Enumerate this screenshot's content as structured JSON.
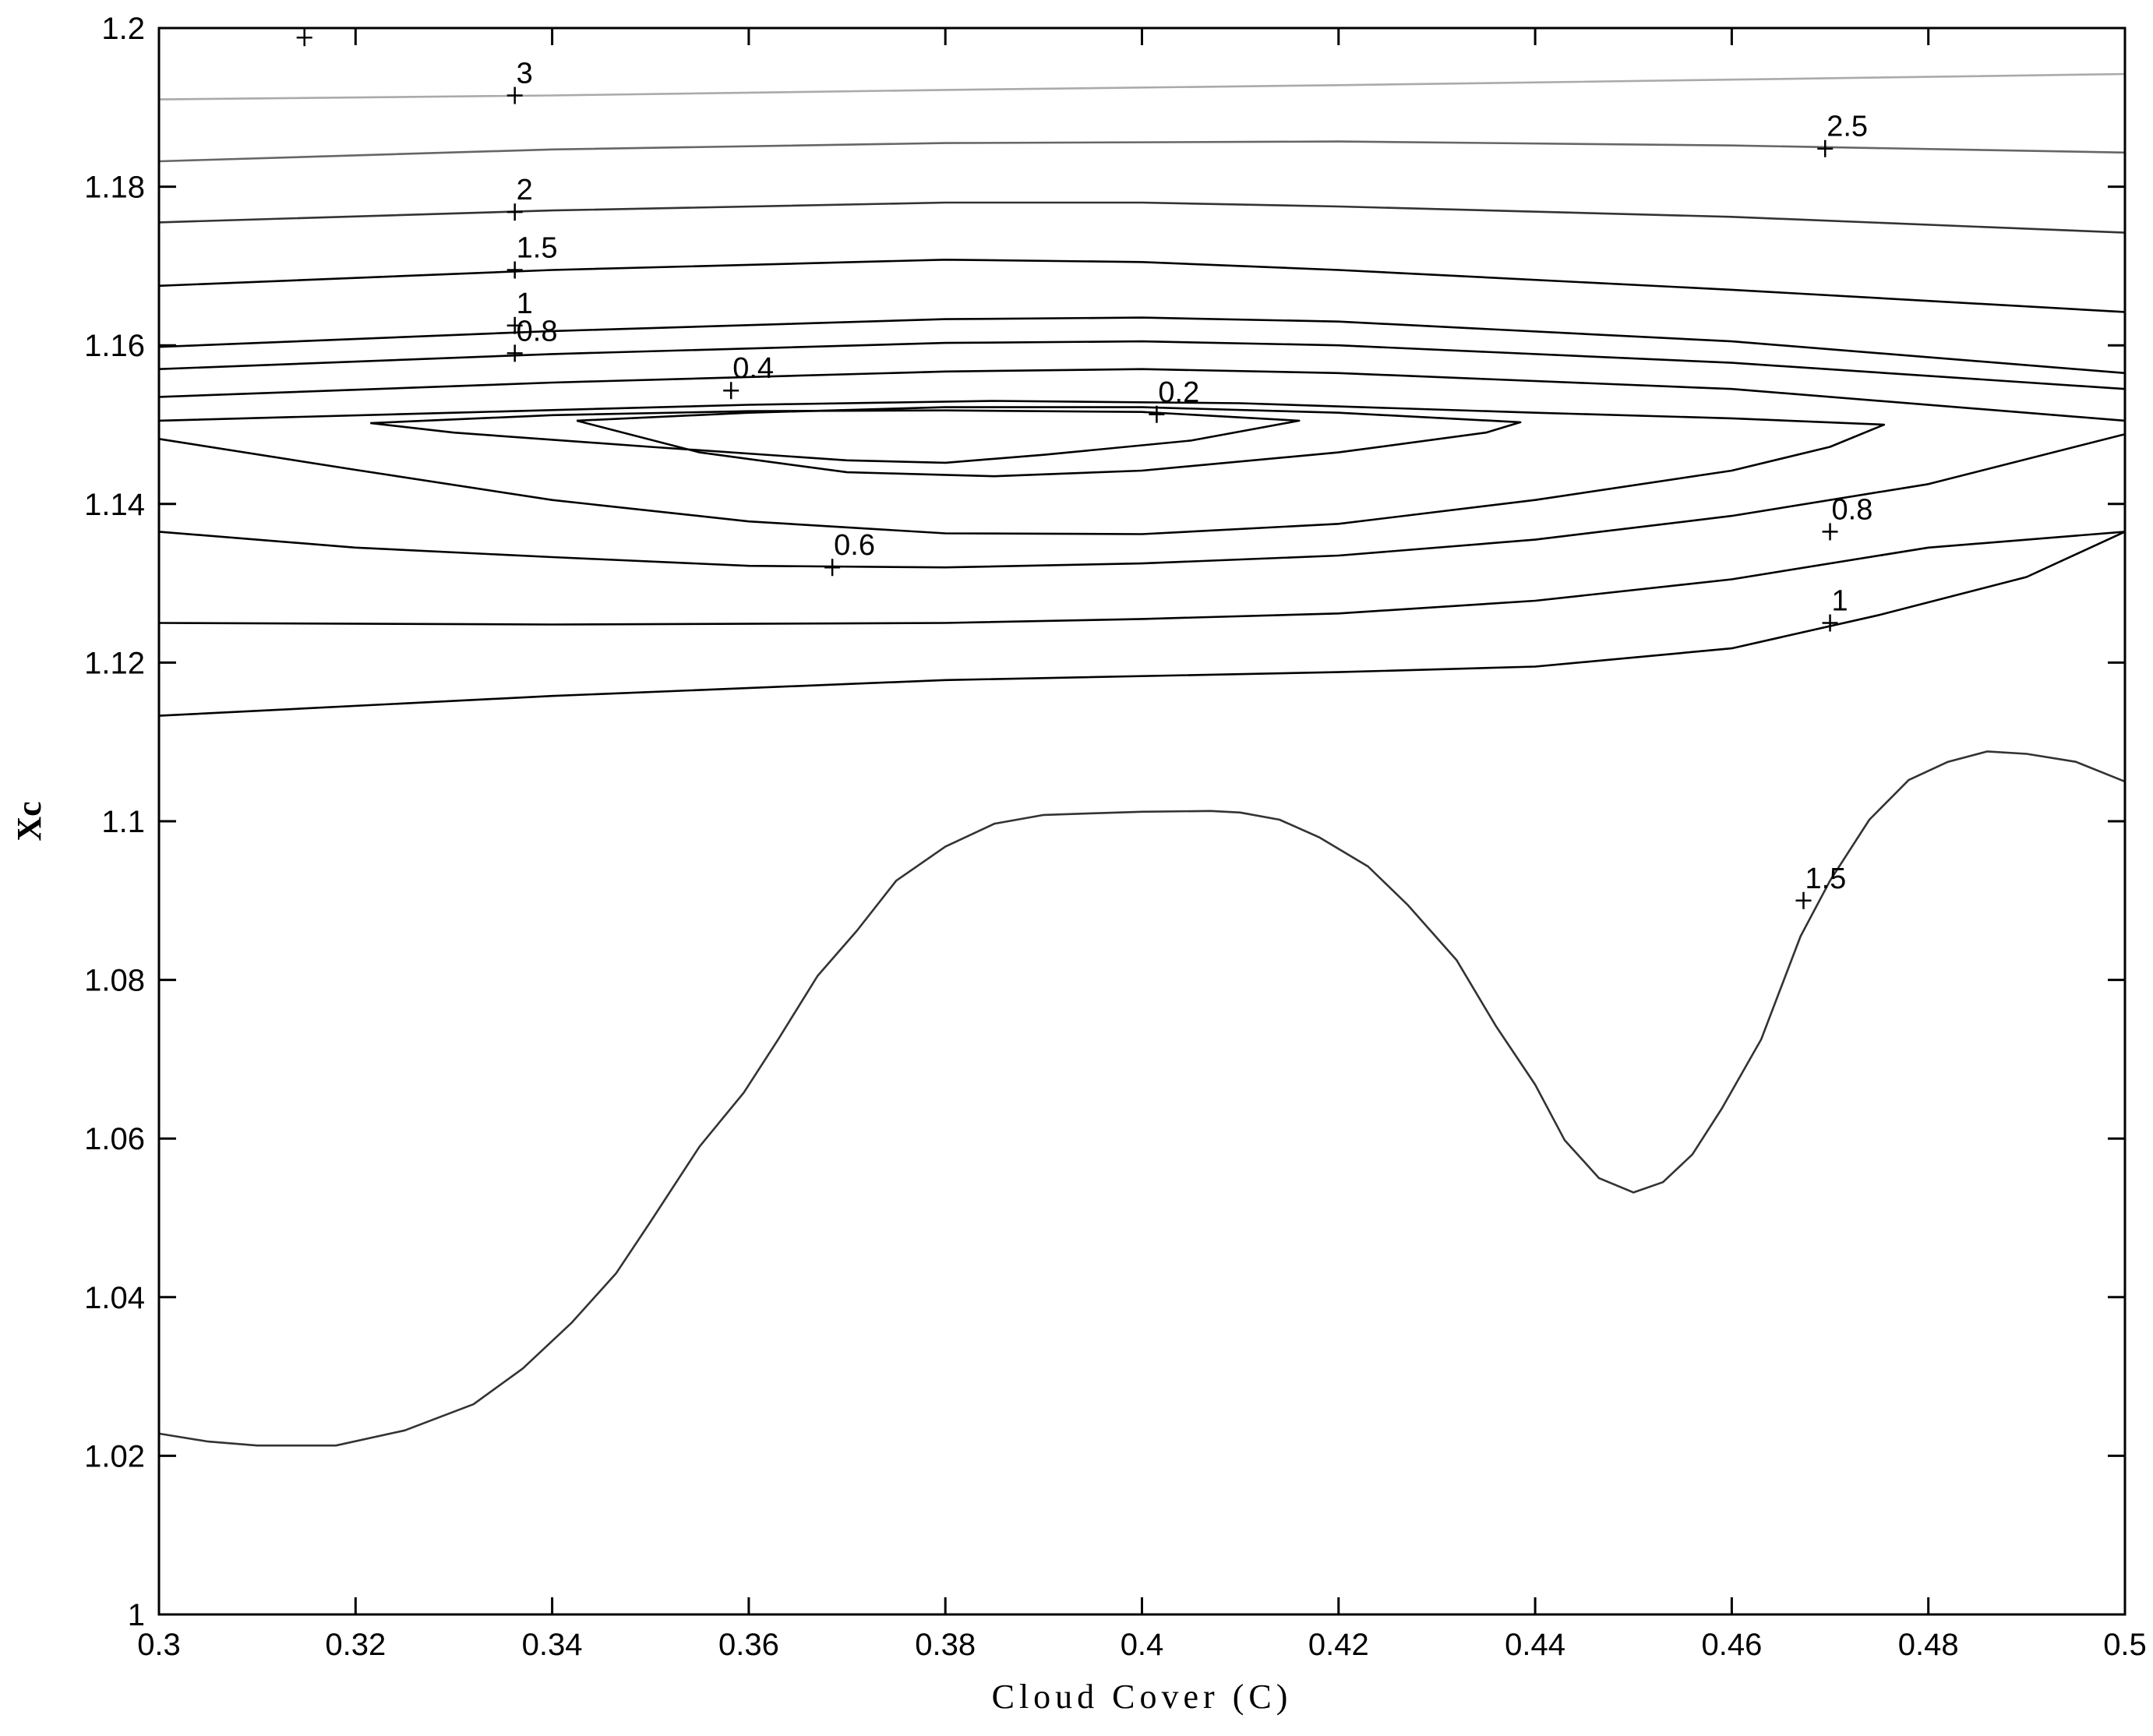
{
  "chart_data": {
    "type": "contour",
    "title": "",
    "xlabel": "Cloud Cover (C)",
    "ylabel": "Xc",
    "xlim": [
      0.3,
      0.5
    ],
    "ylim": [
      1.0,
      1.2
    ],
    "xticks": [
      "0.3",
      "0.32",
      "0.34",
      "0.36",
      "0.38",
      "0.4",
      "0.42",
      "0.44",
      "0.46",
      "0.48",
      "0.5"
    ],
    "yticks": [
      "1",
      "1.02",
      "1.04",
      "1.06",
      "1.08",
      "1.1",
      "1.12",
      "1.14",
      "1.16",
      "1.18",
      "1.2"
    ],
    "grid": false,
    "contours": [
      {
        "level": "3",
        "color": "#aaaaaa",
        "points": [
          [
            0.3,
            1.191
          ],
          [
            0.34,
            1.1915
          ],
          [
            0.38,
            1.1922
          ],
          [
            0.42,
            1.1928
          ],
          [
            0.46,
            1.1935
          ],
          [
            0.5,
            1.1942
          ]
        ]
      },
      {
        "level": "2.5",
        "color": "#666666",
        "points": [
          [
            0.3,
            1.1832
          ],
          [
            0.34,
            1.1847
          ],
          [
            0.38,
            1.1855
          ],
          [
            0.42,
            1.1857
          ],
          [
            0.46,
            1.1852
          ],
          [
            0.5,
            1.1843
          ]
        ]
      },
      {
        "level": "2",
        "color": "#333333",
        "points": [
          [
            0.3,
            1.1755
          ],
          [
            0.34,
            1.177
          ],
          [
            0.38,
            1.178
          ],
          [
            0.4,
            1.178
          ],
          [
            0.42,
            1.1775
          ],
          [
            0.46,
            1.1762
          ],
          [
            0.5,
            1.1742
          ]
        ]
      },
      {
        "level": "1.5",
        "color": "#000000",
        "points": [
          [
            0.3,
            1.1675
          ],
          [
            0.34,
            1.1695
          ],
          [
            0.38,
            1.1708
          ],
          [
            0.4,
            1.1705
          ],
          [
            0.42,
            1.1695
          ],
          [
            0.46,
            1.167
          ],
          [
            0.5,
            1.1642
          ]
        ]
      },
      {
        "level": "1",
        "color": "#000000",
        "points": [
          [
            0.3,
            1.1598
          ],
          [
            0.34,
            1.1618
          ],
          [
            0.38,
            1.1633
          ],
          [
            0.4,
            1.1635
          ],
          [
            0.42,
            1.163
          ],
          [
            0.46,
            1.1605
          ],
          [
            0.5,
            1.1565
          ]
        ]
      },
      {
        "level": "0.8",
        "color": "#000000",
        "points": [
          [
            0.3,
            1.157
          ],
          [
            0.34,
            1.1589
          ],
          [
            0.38,
            1.1603
          ],
          [
            0.4,
            1.1605
          ],
          [
            0.42,
            1.16
          ],
          [
            0.46,
            1.1578
          ],
          [
            0.5,
            1.1545
          ]
        ]
      },
      {
        "level": "0.6",
        "color": "#000000",
        "points": [
          [
            0.3,
            1.1535
          ],
          [
            0.34,
            1.1553
          ],
          [
            0.38,
            1.1567
          ],
          [
            0.4,
            1.157
          ],
          [
            0.42,
            1.1565
          ],
          [
            0.46,
            1.1545
          ],
          [
            0.5,
            1.1505
          ]
        ]
      },
      {
        "level": "0.4",
        "color": "#000000",
        "points": [
          [
            0.3,
            1.1505
          ],
          [
            0.33,
            1.1515
          ],
          [
            0.36,
            1.1525
          ],
          [
            0.385,
            1.153
          ],
          [
            0.41,
            1.1527
          ],
          [
            0.44,
            1.1515
          ],
          [
            0.46,
            1.1508
          ],
          [
            0.4755,
            1.15
          ],
          [
            0.47,
            1.1472
          ],
          [
            0.46,
            1.1442
          ],
          [
            0.44,
            1.1405
          ],
          [
            0.42,
            1.1375
          ],
          [
            0.4,
            1.1362
          ],
          [
            0.38,
            1.1363
          ],
          [
            0.36,
            1.1378
          ],
          [
            0.34,
            1.1405
          ],
          [
            0.32,
            1.1443
          ],
          [
            0.3,
            1.1482
          ]
        ]
      },
      {
        "level": "0.2",
        "color": "#000000",
        "points": [
          [
            0.3215,
            1.1502
          ],
          [
            0.34,
            1.1512
          ],
          [
            0.36,
            1.1517
          ],
          [
            0.38,
            1.1518
          ],
          [
            0.4,
            1.1516
          ],
          [
            0.416,
            1.1505
          ],
          [
            0.405,
            1.148
          ],
          [
            0.39,
            1.1462
          ],
          [
            0.38,
            1.1452
          ],
          [
            0.37,
            1.1455
          ],
          [
            0.35,
            1.1472
          ],
          [
            0.33,
            1.149
          ],
          [
            0.3215,
            1.1502
          ]
        ]
      },
      {
        "level": "0.4",
        "color": "#000000",
        "points": [
          [
            0.3425,
            1.1505
          ],
          [
            0.36,
            1.1515
          ],
          [
            0.38,
            1.1522
          ],
          [
            0.4,
            1.1522
          ],
          [
            0.42,
            1.1515
          ],
          [
            0.4385,
            1.1503
          ],
          [
            0.435,
            1.149
          ],
          [
            0.42,
            1.1465
          ],
          [
            0.4,
            1.1442
          ],
          [
            0.385,
            1.1435
          ],
          [
            0.37,
            1.144
          ],
          [
            0.355,
            1.1465
          ],
          [
            0.3425,
            1.1505
          ]
        ]
      },
      {
        "level": "0.6",
        "color": "#000000",
        "points": [
          [
            0.3,
            1.1365
          ],
          [
            0.32,
            1.1345
          ],
          [
            0.34,
            1.1333
          ],
          [
            0.36,
            1.1322
          ],
          [
            0.38,
            1.132
          ],
          [
            0.4,
            1.1325
          ],
          [
            0.42,
            1.1335
          ],
          [
            0.44,
            1.1355
          ],
          [
            0.46,
            1.1385
          ],
          [
            0.48,
            1.1425
          ],
          [
            0.5,
            1.1488
          ]
        ]
      },
      {
        "level": "0.8",
        "color": "#000000",
        "points": [
          [
            0.3,
            1.125
          ],
          [
            0.34,
            1.1248
          ],
          [
            0.38,
            1.125
          ],
          [
            0.4,
            1.1255
          ],
          [
            0.42,
            1.1262
          ],
          [
            0.44,
            1.1278
          ],
          [
            0.46,
            1.1305
          ],
          [
            0.48,
            1.1345
          ],
          [
            0.5,
            1.1365
          ]
        ]
      },
      {
        "level": "1",
        "color": "#000000",
        "points": [
          [
            0.3,
            1.1133
          ],
          [
            0.34,
            1.1158
          ],
          [
            0.38,
            1.1178
          ],
          [
            0.42,
            1.1188
          ],
          [
            0.44,
            1.1195
          ],
          [
            0.46,
            1.1218
          ],
          [
            0.475,
            1.126
          ],
          [
            0.49,
            1.1308
          ],
          [
            0.5,
            1.1365
          ]
        ]
      },
      {
        "level": "1.5",
        "color": "#333333",
        "points": [
          [
            0.3,
            1.0228
          ],
          [
            0.305,
            1.0218
          ],
          [
            0.31,
            1.0213
          ],
          [
            0.318,
            1.0213
          ],
          [
            0.325,
            1.0232
          ],
          [
            0.332,
            1.0265
          ],
          [
            0.337,
            1.031
          ],
          [
            0.342,
            1.0368
          ],
          [
            0.3465,
            1.043
          ],
          [
            0.35,
            1.0495
          ],
          [
            0.355,
            1.059
          ],
          [
            0.3595,
            1.0658
          ],
          [
            0.363,
            1.0725
          ],
          [
            0.367,
            1.0805
          ],
          [
            0.371,
            1.0862
          ],
          [
            0.375,
            1.0925
          ],
          [
            0.38,
            1.0968
          ],
          [
            0.385,
            1.0997
          ],
          [
            0.39,
            1.1008
          ],
          [
            0.395,
            1.101
          ],
          [
            0.4,
            1.1012
          ],
          [
            0.407,
            1.1013
          ],
          [
            0.41,
            1.1011
          ],
          [
            0.414,
            1.1002
          ],
          [
            0.418,
            1.098
          ],
          [
            0.423,
            1.0943
          ],
          [
            0.427,
            1.0895
          ],
          [
            0.432,
            1.0825
          ],
          [
            0.436,
            1.0742
          ],
          [
            0.44,
            1.0668
          ],
          [
            0.443,
            1.0598
          ],
          [
            0.4465,
            1.055
          ],
          [
            0.45,
            1.0532
          ],
          [
            0.453,
            1.0545
          ],
          [
            0.456,
            1.058
          ],
          [
            0.459,
            1.0638
          ],
          [
            0.463,
            1.0725
          ],
          [
            0.467,
            1.0855
          ],
          [
            0.47,
            1.0925
          ],
          [
            0.474,
            1.1002
          ],
          [
            0.478,
            1.1052
          ],
          [
            0.482,
            1.1075
          ],
          [
            0.486,
            1.1088
          ],
          [
            0.49,
            1.1085
          ],
          [
            0.495,
            1.1075
          ],
          [
            0.5,
            1.105
          ]
        ]
      }
    ],
    "labels": [
      {
        "text": "3",
        "x": 0.3362,
        "y": 1.1915
      },
      {
        "text": "2.5",
        "x": 0.4695,
        "y": 1.1848
      },
      {
        "text": "2",
        "x": 0.3362,
        "y": 1.1768
      },
      {
        "text": "1.5",
        "x": 0.3362,
        "y": 1.1695
      },
      {
        "text": "1",
        "x": 0.3362,
        "y": 1.1625
      },
      {
        "text": "0.8",
        "x": 0.3362,
        "y": 1.159
      },
      {
        "text": "0.4",
        "x": 0.3582,
        "y": 1.1543
      },
      {
        "text": "0.2",
        "x": 0.4015,
        "y": 1.1513
      },
      {
        "text": "0.6",
        "x": 0.3685,
        "y": 1.132
      },
      {
        "text": "0.8",
        "x": 0.47,
        "y": 1.1365
      },
      {
        "text": "1",
        "x": 0.47,
        "y": 1.125
      },
      {
        "text": "1.5",
        "x": 0.4673,
        "y": 1.09
      }
    ],
    "extra_markers": [
      {
        "x": 0.3148,
        "y": 1.1988
      }
    ]
  }
}
